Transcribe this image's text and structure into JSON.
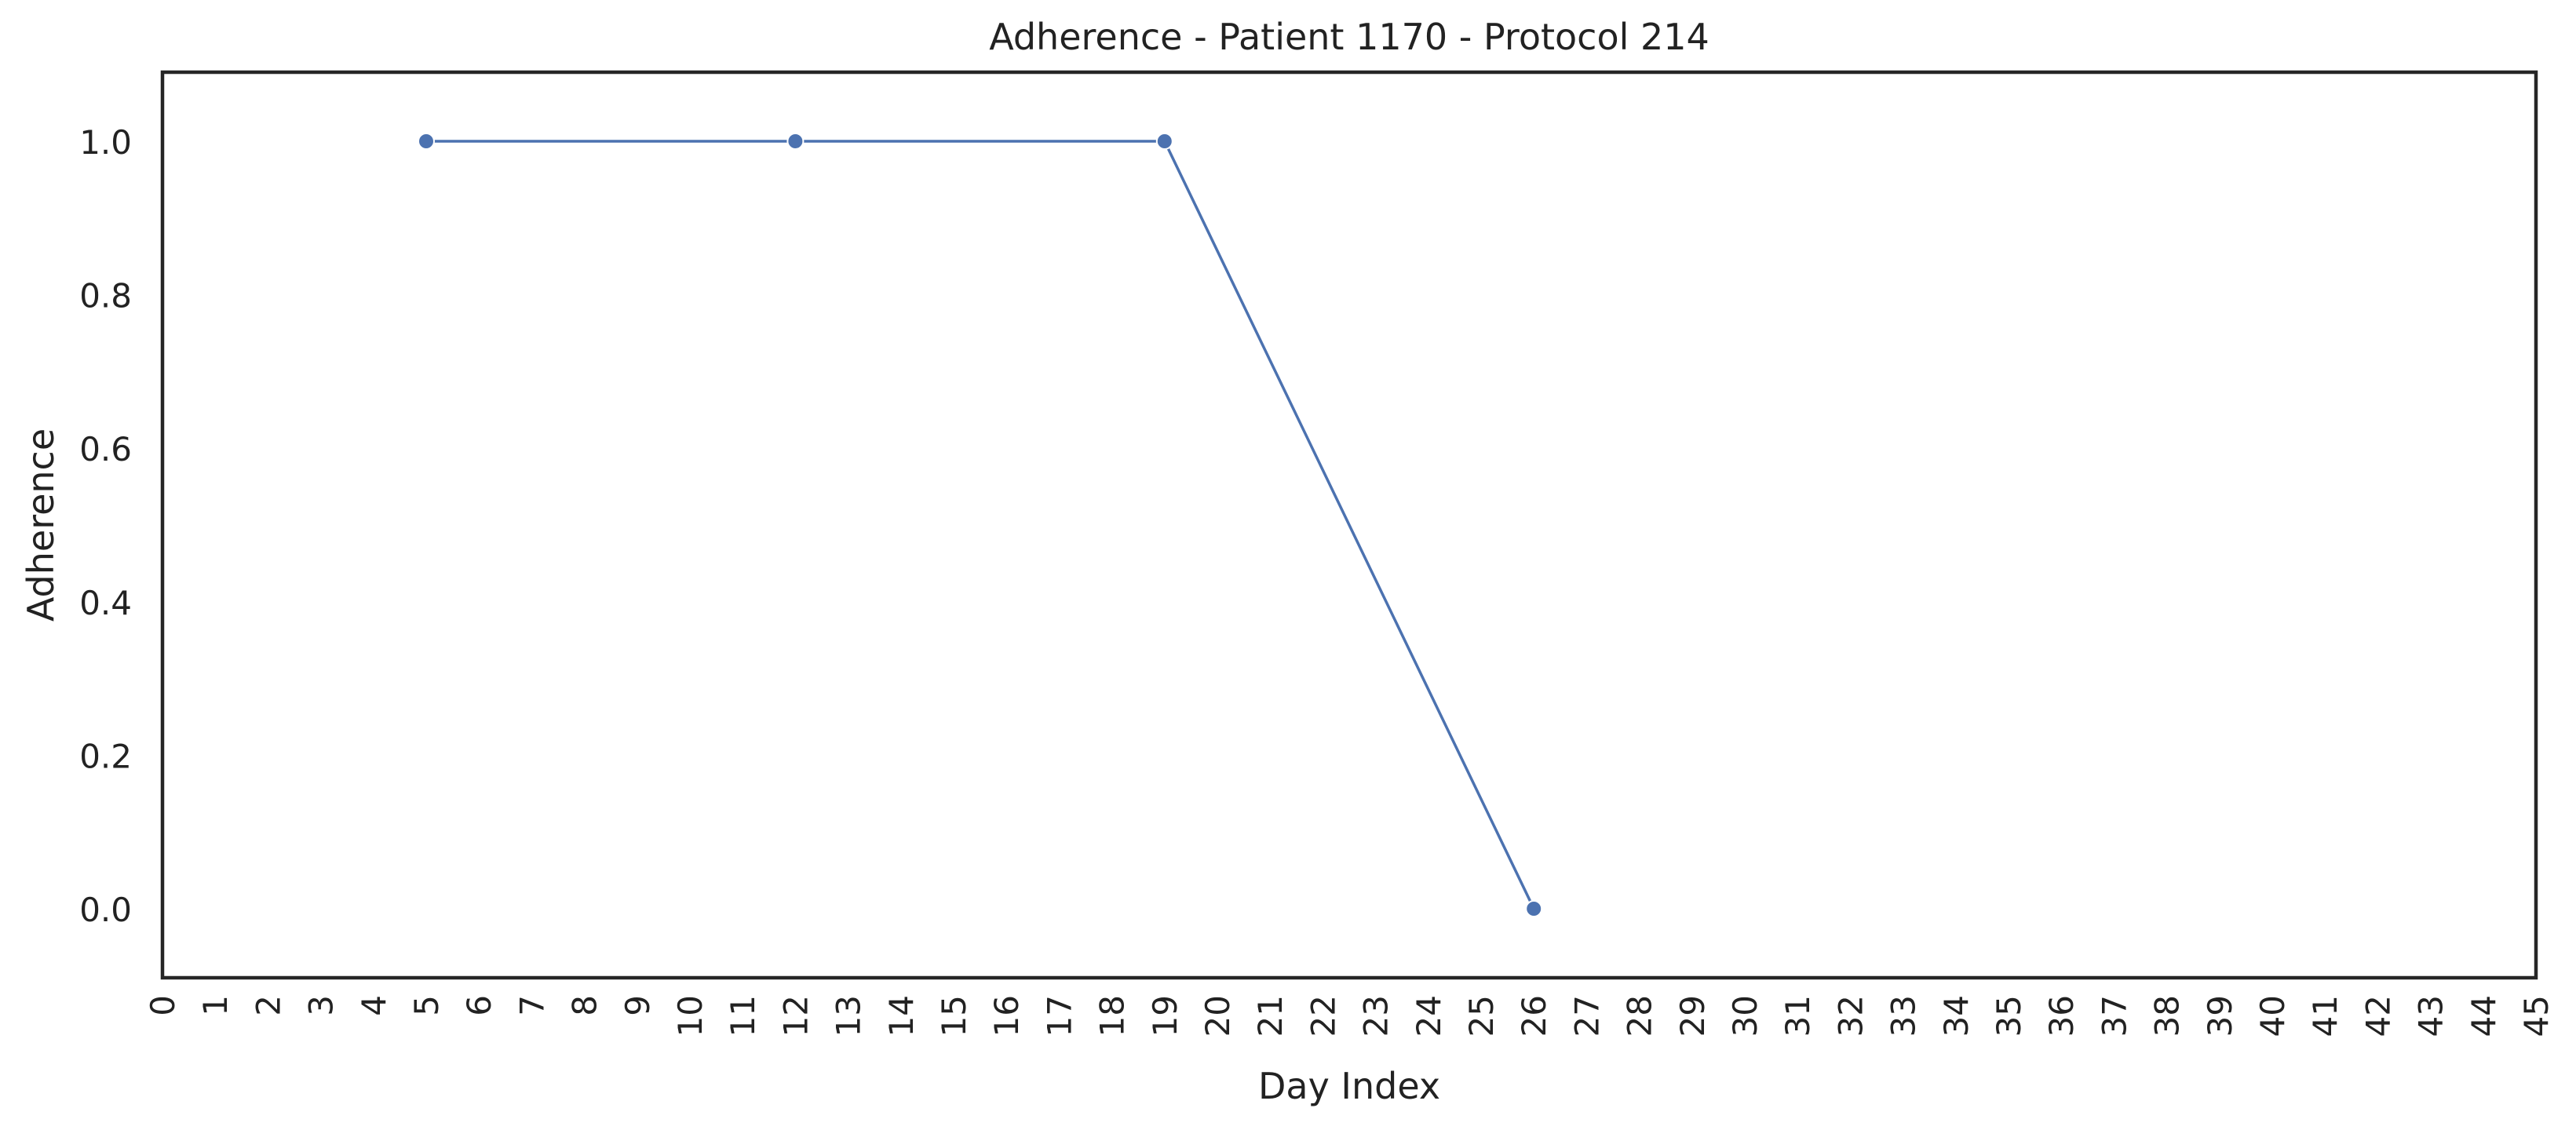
{
  "chart_data": {
    "type": "line",
    "title": "Adherence - Patient 1170 - Protocol 214",
    "xlabel": "Day Index",
    "ylabel": "Adherence",
    "xlim": [
      0,
      45
    ],
    "ylim": [
      -0.09,
      1.09
    ],
    "x_ticks": [
      0,
      1,
      2,
      3,
      4,
      5,
      6,
      7,
      8,
      9,
      10,
      11,
      12,
      13,
      14,
      15,
      16,
      17,
      18,
      19,
      20,
      21,
      22,
      23,
      24,
      25,
      26,
      27,
      28,
      29,
      30,
      31,
      32,
      33,
      34,
      35,
      36,
      37,
      38,
      39,
      40,
      41,
      42,
      43,
      44,
      45
    ],
    "y_ticks": [
      "0.0",
      "0.2",
      "0.4",
      "0.6",
      "0.8",
      "1.0"
    ],
    "y_tick_values": [
      0,
      0.2,
      0.4,
      0.6,
      0.8,
      1.0
    ],
    "grid": false,
    "legend": "none",
    "series": [
      {
        "color": "#4c72b0",
        "marker": "circle",
        "x": [
          5,
          12,
          19,
          26
        ],
        "y": [
          1.0,
          1.0,
          1.0,
          0.0
        ]
      }
    ]
  }
}
